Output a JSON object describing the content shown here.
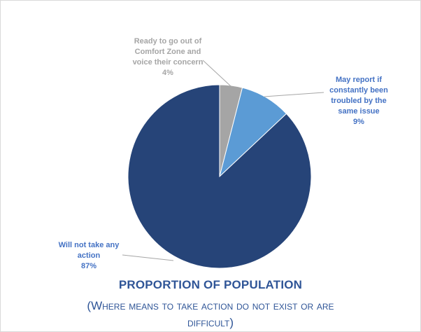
{
  "chart_data": {
    "type": "pie",
    "slices": [
      {
        "label_lines": [
          "Ready to go out of",
          "Comfort Zone and",
          "voice their concern"
        ],
        "value_text": "4%",
        "value": 4,
        "color": "#a5a5a5",
        "label_color": "#a5a5a5"
      },
      {
        "label_lines": [
          "May report if",
          "constantly been",
          "troubled by the",
          "same issue"
        ],
        "value_text": "9%",
        "value": 9,
        "color": "#5b9bd5",
        "label_color": "#4472c4"
      },
      {
        "label_lines": [
          "Will not take any",
          "action"
        ],
        "value_text": "87%",
        "value": 87,
        "color": "#264478",
        "label_color": "#4472c4"
      }
    ],
    "title": "PROPORTION OF POPULATION",
    "subtitle_line1": "(Where means to take action do not exist or are",
    "subtitle_line2": "difficult)"
  }
}
